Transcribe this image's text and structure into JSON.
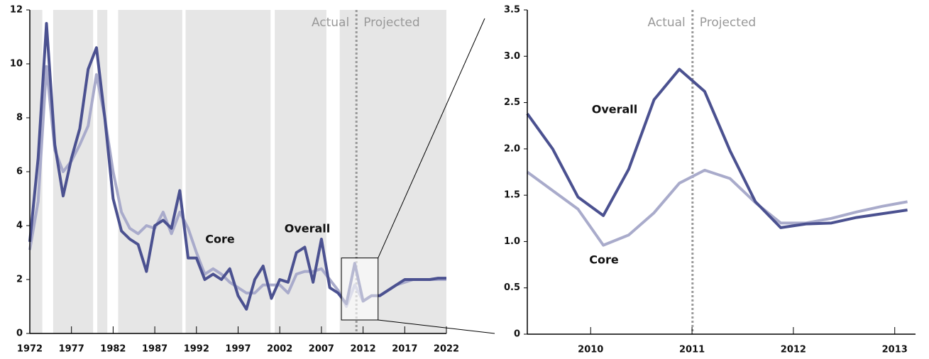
{
  "chart_data": [
    {
      "type": "line",
      "x": [
        1972,
        1973,
        1974,
        1975,
        1976,
        1977,
        1978,
        1979,
        1980,
        1981,
        1982,
        1983,
        1984,
        1985,
        1986,
        1987,
        1988,
        1989,
        1990,
        1991,
        1992,
        1993,
        1994,
        1995,
        1996,
        1997,
        1998,
        1999,
        2000,
        2001,
        2002,
        2003,
        2004,
        2005,
        2006,
        2007,
        2008,
        2009,
        2010,
        2011,
        2012,
        2013,
        2014,
        2015,
        2016,
        2017,
        2018,
        2019,
        2020,
        2021,
        2022
      ],
      "series": [
        {
          "name": "Overall",
          "color": "#4b5190",
          "values": [
            3.4,
            6.5,
            11.5,
            7,
            5.1,
            6.5,
            7.6,
            9.8,
            10.6,
            8,
            5,
            3.8,
            3.5,
            3.3,
            2.3,
            4.0,
            4.2,
            3.9,
            5.3,
            2.8,
            2.8,
            2.0,
            2.2,
            2.0,
            2.4,
            1.4,
            0.9,
            2.0,
            2.5,
            1.3,
            2.0,
            1.9,
            3.0,
            3.2,
            1.9,
            3.5,
            1.7,
            1.5,
            1.1,
            2.6,
            1.2,
            1.4,
            1.4,
            1.6,
            1.8,
            2.0,
            2.0,
            2.0,
            2.0,
            2.05,
            2.05
          ]
        },
        {
          "name": "Core",
          "color": "#a9abcb",
          "values": [
            3.1,
            4.9,
            9.9,
            6.8,
            6.0,
            6.4,
            7.0,
            7.7,
            9.6,
            8.0,
            6.0,
            4.5,
            3.9,
            3.7,
            4.0,
            3.9,
            4.5,
            3.7,
            4.5,
            3.9,
            3.0,
            2.2,
            2.4,
            2.2,
            1.9,
            1.7,
            1.5,
            1.5,
            1.8,
            1.8,
            1.8,
            1.5,
            2.2,
            2.3,
            2.3,
            2.4,
            2.0,
            1.6,
            1.0,
            1.8,
            1.2,
            1.4,
            1.4,
            1.6,
            1.8,
            1.9,
            2.0,
            2.0,
            2.0,
            2.0,
            2.0
          ]
        }
      ],
      "xlim": [
        1972,
        2022
      ],
      "xticks": [
        1972,
        1977,
        1982,
        1987,
        1992,
        1997,
        2002,
        2007,
        2012,
        2017,
        2022
      ],
      "ylim": [
        0,
        12
      ],
      "yticks": [
        0,
        2,
        4,
        6,
        8,
        10,
        12
      ],
      "shaded": [
        [
          1972,
          1973.5
        ],
        [
          1974.8,
          1979.6
        ],
        [
          1980.1,
          1981.3
        ],
        [
          1982.6,
          1990.3
        ],
        [
          1990.7,
          2000.9
        ],
        [
          2001.4,
          2007.6
        ],
        [
          2009.2,
          2022
        ]
      ],
      "projection_start": 2011.2,
      "actual_label": "Actual",
      "projected_label": "Projected",
      "zoom_box": {
        "xlim": [
          2009.4,
          2013.8
        ],
        "ylim": [
          0.5,
          2.8
        ]
      },
      "annotations": [
        "Core",
        "Overall"
      ]
    },
    {
      "type": "line",
      "x": [
        2009.5,
        2009.75,
        2010,
        2010.25,
        2010.5,
        2010.75,
        2011,
        2011.25,
        2011.5,
        2011.75,
        2012,
        2012.25,
        2012.5,
        2012.75,
        2013,
        2013.25
      ],
      "series": [
        {
          "name": "Overall",
          "color": "#4b5190",
          "values": [
            2.38,
            2.0,
            1.48,
            1.28,
            1.78,
            2.53,
            2.86,
            2.62,
            1.98,
            1.43,
            1.15,
            1.19,
            1.2,
            1.26,
            1.3,
            1.34
          ]
        },
        {
          "name": "Core",
          "color": "#a9abcb",
          "values": [
            1.75,
            1.55,
            1.35,
            0.96,
            1.07,
            1.31,
            1.63,
            1.77,
            1.68,
            1.42,
            1.2,
            1.2,
            1.25,
            1.32,
            1.38,
            1.43
          ]
        }
      ],
      "xlim": [
        2009.5,
        2013.33
      ],
      "xticks": [
        {
          "value": 2010.125,
          "label": "2010"
        },
        {
          "value": 2011.125,
          "label": "2011"
        },
        {
          "value": 2012.125,
          "label": "2012"
        },
        {
          "value": 2013.125,
          "label": "2013"
        }
      ],
      "ylim": [
        0,
        3.5
      ],
      "yticks": [
        0,
        0.5,
        {
          "value": 1.0,
          "label": "1.0"
        },
        1.5,
        {
          "value": 2.0,
          "label": "2.0"
        },
        2.5,
        {
          "value": 3.0,
          "label": "3.0"
        },
        3.5
      ],
      "projection_start": 2011.13,
      "actual_label": "Actual",
      "projected_label": "Projected",
      "annotations": [
        "Overall",
        "Core"
      ]
    }
  ]
}
